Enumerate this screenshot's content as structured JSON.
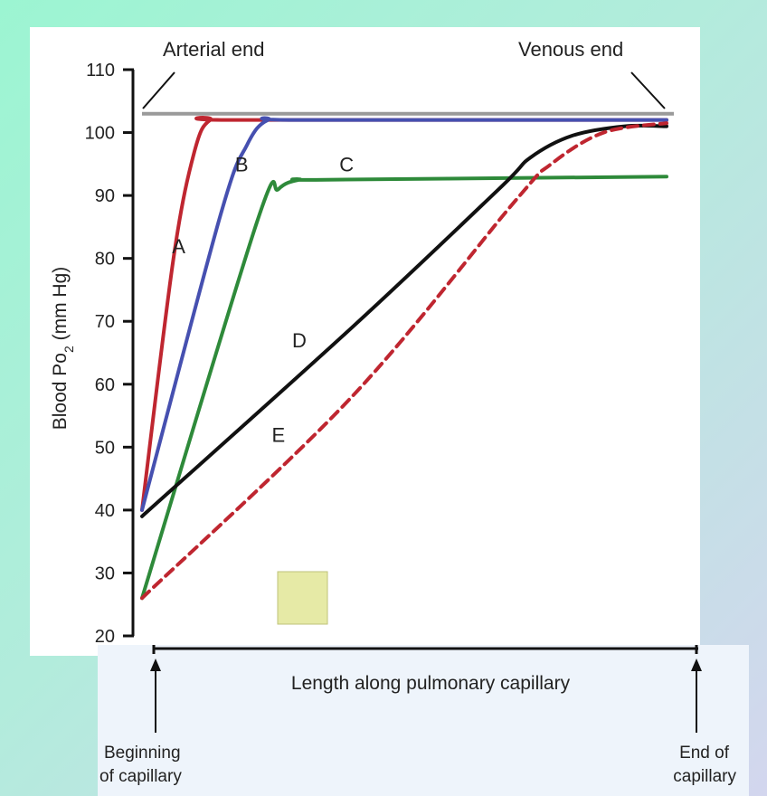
{
  "colors": {
    "red": "#bf2630",
    "blue": "#4650b0",
    "green": "#2e8a3a",
    "black": "#111111",
    "reference": "#9a9a9a",
    "marker": "#e6eaa6"
  },
  "chart_data": {
    "type": "line",
    "title": "",
    "ylabel": "Blood Po",
    "ylabel_sub": "2",
    "ylabel_unit": " (mm Hg)",
    "xlabel": "Length along pulmonary capillary",
    "ylim": [
      20,
      110
    ],
    "yticks": [
      20,
      30,
      40,
      50,
      60,
      70,
      80,
      90,
      100,
      110
    ],
    "xlim": [
      0,
      1
    ],
    "grid": false,
    "annotations": {
      "arterial_end": "Arterial end",
      "venous_end": "Venous end",
      "beginning": [
        "Beginning",
        "of capillary"
      ],
      "end": [
        "End of",
        "capillary"
      ]
    },
    "reference_line": {
      "y": 103
    },
    "series": [
      {
        "name": "A",
        "color": "red",
        "dashed": false,
        "x": [
          0,
          0.06,
          0.1,
          0.13,
          0.18,
          1.0
        ],
        "y": [
          40,
          80,
          97,
          102,
          102,
          102
        ]
      },
      {
        "name": "B",
        "color": "blue",
        "dashed": false,
        "x": [
          0,
          0.15,
          0.2,
          0.24,
          0.3,
          1.0
        ],
        "y": [
          40,
          87,
          98,
          102,
          102,
          102
        ]
      },
      {
        "name": "C",
        "color": "green",
        "dashed": false,
        "x": [
          0,
          0.22,
          0.26,
          0.3,
          0.35,
          1.0
        ],
        "y": [
          26,
          86,
          91,
          92.5,
          92.5,
          93
        ]
      },
      {
        "name": "D",
        "color": "black",
        "dashed": false,
        "x": [
          0,
          0.4,
          0.68,
          0.74,
          0.82,
          0.92,
          1.0
        ],
        "y": [
          39,
          69,
          91,
          96,
          99.5,
          101,
          101
        ]
      },
      {
        "name": "E",
        "color": "red",
        "dashed": true,
        "x": [
          0,
          0.4,
          0.71,
          0.78,
          0.88,
          1.0
        ],
        "y": [
          26,
          58,
          89,
          95,
          100,
          101.5
        ]
      }
    ],
    "curve_labels": [
      {
        "text": "A",
        "x": 0.07,
        "y": 82
      },
      {
        "text": "B",
        "x": 0.19,
        "y": 95
      },
      {
        "text": "C",
        "x": 0.39,
        "y": 95
      },
      {
        "text": "D",
        "x": 0.3,
        "y": 67
      },
      {
        "text": "E",
        "x": 0.26,
        "y": 52
      }
    ]
  }
}
